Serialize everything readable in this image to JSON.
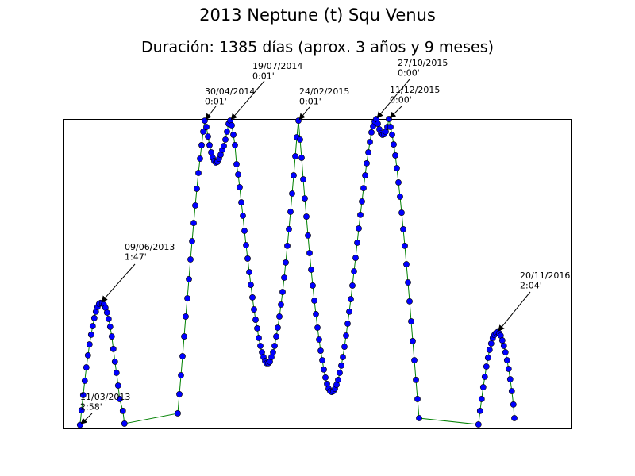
{
  "chart_data": {
    "type": "line",
    "title": "2013 Neptune (t) Squ Venus",
    "subtitle": "Duración: 1385 días (aprox. 3 años y 9 meses)",
    "color": "green",
    "marker_color": "blue",
    "xlim": [
      -52,
      1548
    ],
    "ylim": [
      180,
      0
    ],
    "x": [
      0,
      5,
      10,
      15,
      20,
      25,
      30,
      35,
      40,
      45,
      50,
      55,
      60,
      65,
      70,
      75,
      80,
      85,
      90,
      95,
      100,
      105,
      110,
      115,
      120,
      125,
      135,
      140,
      308,
      313,
      318,
      323,
      328,
      333,
      338,
      343,
      348,
      353,
      358,
      363,
      368,
      373,
      378,
      383,
      388,
      393,
      398,
      403,
      408,
      413,
      418,
      423,
      428,
      433,
      438,
      443,
      448,
      453,
      458,
      463,
      468,
      473,
      478,
      483,
      488,
      493,
      498,
      503,
      508,
      513,
      518,
      523,
      528,
      533,
      538,
      543,
      548,
      553,
      558,
      563,
      568,
      573,
      578,
      583,
      588,
      593,
      598,
      603,
      608,
      613,
      618,
      623,
      628,
      633,
      638,
      643,
      648,
      653,
      658,
      663,
      668,
      673,
      678,
      683,
      688,
      693,
      698,
      703,
      708,
      713,
      718,
      723,
      728,
      733,
      738,
      743,
      748,
      753,
      758,
      763,
      768,
      773,
      778,
      783,
      788,
      793,
      798,
      803,
      808,
      813,
      818,
      823,
      828,
      833,
      838,
      843,
      848,
      853,
      858,
      863,
      868,
      873,
      878,
      883,
      888,
      893,
      898,
      903,
      908,
      913,
      918,
      923,
      928,
      933,
      938,
      943,
      948,
      953,
      958,
      963,
      968,
      973,
      978,
      983,
      988,
      993,
      998,
      1003,
      1008,
      1013,
      1018,
      1023,
      1028,
      1033,
      1038,
      1043,
      1048,
      1053,
      1058,
      1063,
      1068,
      1255,
      1260,
      1265,
      1270,
      1275,
      1280,
      1285,
      1290,
      1295,
      1300,
      1305,
      1310,
      1315,
      1320,
      1325,
      1330,
      1335,
      1340,
      1345,
      1350,
      1355,
      1360,
      1365,
      1368
    ],
    "values": [
      178,
      169.4,
      160.6,
      152.3,
      144.5,
      137.5,
      131.1,
      125.5,
      120.5,
      115.8,
      112.1,
      109.4,
      107.6,
      107,
      107.3,
      108,
      109.8,
      112.6,
      116.3,
      120.9,
      126.5,
      133.8,
      141.2,
      147.7,
      155.1,
      162.9,
      169.8,
      177.2,
      171.2,
      160.1,
      149.1,
      138,
      126.5,
      114.9,
      104.3,
      93.2,
      81.7,
      71.1,
      60.5,
      50.3,
      40.6,
      31.4,
      23.1,
      15.2,
      7.4,
      1,
      4.6,
      10.2,
      15.2,
      19.4,
      22.6,
      24.5,
      25.4,
      24.9,
      23.1,
      20.8,
      18,
      15.7,
      12,
      7.4,
      2.8,
      1,
      3.7,
      9.2,
      15.2,
      26.3,
      32.3,
      39.7,
      48.5,
      56.3,
      65.1,
      73.4,
      81.2,
      89.1,
      96.5,
      103.8,
      110.8,
      116.8,
      121.8,
      127.4,
      132,
      135.7,
      138.5,
      140.8,
      142.1,
      142.1,
      141.2,
      138.5,
      135.7,
      132,
      126.5,
      121.4,
      114.9,
      108,
      100.6,
      92.3,
      83.5,
      73.8,
      64.1,
      54,
      43.4,
      32.8,
      21.7,
      10.6,
      1,
      12,
      22.6,
      35.1,
      46.2,
      56.8,
      67.8,
      78,
      87.7,
      96.9,
      105.7,
      113.5,
      121.4,
      128.3,
      134.8,
      140.3,
      145.8,
      150.4,
      154.1,
      156.9,
      158.3,
      158.8,
      158.3,
      156.9,
      154.6,
      151.8,
      147.7,
      143.5,
      138.5,
      132.5,
      126,
      119.1,
      112.1,
      104.8,
      96.9,
      88.6,
      80.8,
      72,
      63.7,
      55.8,
      48,
      40.2,
      32.8,
      25.8,
      19.4,
      13.4,
      7.8,
      4.2,
      1.4,
      0,
      2.8,
      6,
      8.3,
      9.2,
      8.8,
      7.4,
      4.6,
      0,
      4.6,
      9.2,
      14.8,
      21.2,
      28.6,
      36.9,
      45.2,
      54.5,
      64.1,
      73.8,
      84.5,
      95.1,
      106.1,
      117.7,
      129.2,
      140.3,
      151.8,
      162.9,
      174,
      177.7,
      169.8,
      162.9,
      156,
      150,
      144,
      138.9,
      134.3,
      130.6,
      127.4,
      125.6,
      124.5,
      124,
      124.6,
      126,
      128.8,
      132,
      135.7,
      140.3,
      145.4,
      151.4,
      158.3,
      166.1,
      174
    ],
    "annotations": [
      {
        "lines": [
          "11/03/2013",
          "2:58'"
        ]
      },
      {
        "lines": [
          "09/06/2013",
          "1:47'"
        ]
      },
      {
        "lines": [
          "30/04/2014",
          "0:01'"
        ]
      },
      {
        "lines": [
          "19/07/2014",
          "0:01'"
        ]
      },
      {
        "lines": [
          "24/02/2015",
          "0:01'"
        ]
      },
      {
        "lines": [
          "27/10/2015",
          "0:00'"
        ]
      },
      {
        "lines": [
          "11/12/2015",
          "0:00'"
        ]
      },
      {
        "lines": [
          "20/11/2016",
          "2:04'"
        ]
      }
    ]
  }
}
